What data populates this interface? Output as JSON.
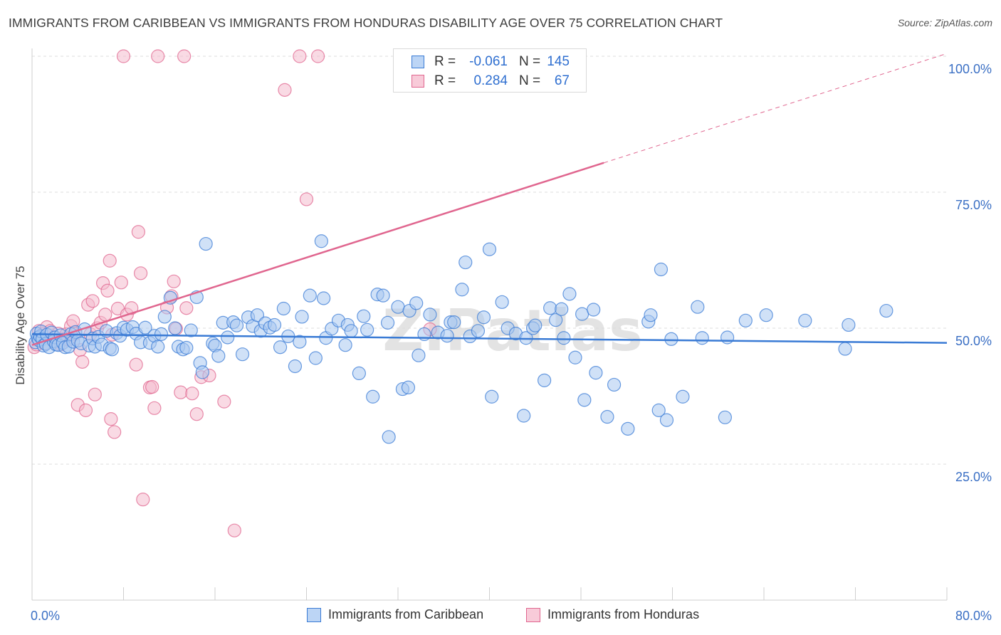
{
  "title": "IMMIGRANTS FROM CARIBBEAN VS IMMIGRANTS FROM HONDURAS DISABILITY AGE OVER 75 CORRELATION CHART",
  "source": "Source: ZipAtlas.com",
  "watermark": "ZIPatlas",
  "colors": {
    "blue": "#3a7bd5",
    "blue_fill": "#a9c9f1",
    "pink": "#e0668f",
    "pink_fill": "#f4bccd",
    "axis_text": "#3a6fc4",
    "grid": "#dcdcdc"
  },
  "legend_top": {
    "rows": [
      {
        "r_label": "R =",
        "r_value": "-0.061",
        "n_label": "N =",
        "n_value": "145",
        "color": "blue"
      },
      {
        "r_label": "R =",
        "r_value": "0.284",
        "n_label": "N =",
        "n_value": "67",
        "color": "pink"
      }
    ]
  },
  "legend_bottom": [
    {
      "label": "Immigrants from Caribbean",
      "color": "blue"
    },
    {
      "label": "Immigrants from Honduras",
      "color": "pink"
    }
  ],
  "chart_data": {
    "type": "scatter",
    "title": "IMMIGRANTS FROM CARIBBEAN VS IMMIGRANTS FROM HONDURAS DISABILITY AGE OVER 75 CORRELATION CHART",
    "xlabel": "",
    "ylabel": "Disability Age Over 75",
    "xlim": [
      0,
      80
    ],
    "ylim": [
      0,
      105
    ],
    "x_tick_labels": [
      "0.0%",
      "80.0%"
    ],
    "y_ticks": [
      25,
      50,
      75,
      100
    ],
    "y_tick_labels": [
      "25.0%",
      "50.0%",
      "75.0%",
      "100.0%"
    ],
    "grid": true,
    "legend_placement": "bottom",
    "series": [
      {
        "name": "Immigrants from Caribbean",
        "color": "blue",
        "trend": {
          "x": [
            0,
            80
          ],
          "y": [
            48.9,
            47.3
          ]
        },
        "points": [
          [
            0.3,
            47.4
          ],
          [
            0.4,
            49.0
          ],
          [
            0.5,
            48.2
          ],
          [
            0.6,
            47.8
          ],
          [
            0.7,
            48.5
          ],
          [
            0.8,
            49.4
          ],
          [
            0.9,
            48.0
          ],
          [
            1.0,
            46.8
          ],
          [
            1.2,
            47.1
          ],
          [
            1.3,
            48.8
          ],
          [
            1.5,
            46.5
          ],
          [
            1.7,
            49.2
          ],
          [
            1.9,
            47.6
          ],
          [
            2.0,
            48.3
          ],
          [
            2.1,
            47.0
          ],
          [
            2.3,
            46.9
          ],
          [
            2.5,
            48.7
          ],
          [
            2.7,
            47.3
          ],
          [
            2.9,
            46.5
          ],
          [
            3.2,
            46.6
          ],
          [
            3.4,
            48.9
          ],
          [
            3.6,
            47.5
          ],
          [
            3.8,
            49.3
          ],
          [
            4.0,
            47.7
          ],
          [
            4.3,
            47.2
          ],
          [
            4.6,
            49.8
          ],
          [
            5.0,
            46.8
          ],
          [
            5.3,
            48.1
          ],
          [
            5.5,
            46.6
          ],
          [
            5.8,
            48.4
          ],
          [
            6.1,
            47.0
          ],
          [
            6.5,
            49.5
          ],
          [
            6.8,
            46.3
          ],
          [
            7.0,
            46.1
          ],
          [
            7.4,
            49.1
          ],
          [
            7.7,
            48.6
          ],
          [
            8.0,
            50.1
          ],
          [
            8.3,
            49.7
          ],
          [
            8.8,
            50.2
          ],
          [
            9.1,
            49.0
          ],
          [
            9.5,
            47.4
          ],
          [
            9.9,
            50.1
          ],
          [
            10.3,
            47.3
          ],
          [
            10.7,
            48.6
          ],
          [
            11.0,
            46.6
          ],
          [
            11.3,
            48.9
          ],
          [
            11.6,
            52.1
          ],
          [
            12.1,
            55.6
          ],
          [
            12.5,
            50.0
          ],
          [
            12.8,
            46.6
          ],
          [
            13.2,
            46.1
          ],
          [
            13.5,
            46.4
          ],
          [
            13.9,
            49.6
          ],
          [
            14.4,
            55.7
          ],
          [
            14.7,
            43.6
          ],
          [
            14.9,
            41.9
          ],
          [
            15.2,
            65.5
          ],
          [
            15.8,
            47.2
          ],
          [
            16.0,
            46.8
          ],
          [
            16.3,
            44.9
          ],
          [
            16.7,
            51.0
          ],
          [
            17.1,
            48.3
          ],
          [
            17.6,
            51.1
          ],
          [
            17.9,
            50.5
          ],
          [
            18.4,
            45.2
          ],
          [
            18.9,
            52.0
          ],
          [
            19.3,
            50.4
          ],
          [
            19.7,
            52.4
          ],
          [
            20.0,
            49.5
          ],
          [
            20.4,
            50.9
          ],
          [
            20.8,
            50.1
          ],
          [
            21.2,
            50.6
          ],
          [
            21.7,
            46.5
          ],
          [
            22.0,
            53.6
          ],
          [
            22.4,
            48.5
          ],
          [
            23.0,
            43.0
          ],
          [
            23.4,
            47.5
          ],
          [
            23.6,
            52.1
          ],
          [
            24.3,
            56.0
          ],
          [
            24.8,
            44.5
          ],
          [
            25.3,
            66.0
          ],
          [
            25.5,
            55.5
          ],
          [
            25.7,
            48.2
          ],
          [
            26.2,
            49.9
          ],
          [
            26.8,
            51.4
          ],
          [
            27.4,
            46.9
          ],
          [
            27.6,
            50.6
          ],
          [
            27.9,
            49.5
          ],
          [
            28.6,
            41.7
          ],
          [
            29.0,
            52.2
          ],
          [
            29.3,
            49.7
          ],
          [
            29.8,
            37.4
          ],
          [
            30.2,
            56.2
          ],
          [
            30.7,
            56.0
          ],
          [
            31.1,
            51.0
          ],
          [
            31.2,
            30.0
          ],
          [
            32.0,
            53.9
          ],
          [
            32.4,
            38.8
          ],
          [
            32.9,
            39.1
          ],
          [
            33.0,
            53.2
          ],
          [
            33.6,
            54.6
          ],
          [
            33.8,
            45.0
          ],
          [
            34.3,
            48.9
          ],
          [
            34.8,
            52.5
          ],
          [
            35.5,
            49.2
          ],
          [
            36.3,
            48.6
          ],
          [
            36.6,
            51.1
          ],
          [
            36.9,
            51.1
          ],
          [
            37.6,
            57.1
          ],
          [
            37.9,
            62.1
          ],
          [
            38.3,
            48.5
          ],
          [
            39.0,
            49.5
          ],
          [
            39.5,
            52.0
          ],
          [
            40.0,
            64.5
          ],
          [
            40.2,
            37.4
          ],
          [
            41.1,
            54.8
          ],
          [
            41.6,
            50.0
          ],
          [
            42.3,
            49.0
          ],
          [
            43.0,
            33.9
          ],
          [
            43.2,
            48.2
          ],
          [
            43.8,
            50.0
          ],
          [
            44.0,
            50.5
          ],
          [
            44.8,
            40.4
          ],
          [
            45.3,
            53.7
          ],
          [
            45.8,
            51.5
          ],
          [
            46.3,
            53.5
          ],
          [
            46.5,
            48.2
          ],
          [
            47.0,
            56.3
          ],
          [
            47.5,
            44.6
          ],
          [
            48.1,
            52.6
          ],
          [
            48.3,
            36.8
          ],
          [
            49.1,
            53.4
          ],
          [
            49.3,
            41.8
          ],
          [
            50.3,
            33.7
          ],
          [
            50.9,
            39.6
          ],
          [
            52.1,
            31.5
          ],
          [
            53.9,
            51.2
          ],
          [
            54.1,
            52.4
          ],
          [
            54.8,
            34.9
          ],
          [
            55.0,
            60.8
          ],
          [
            55.5,
            33.1
          ],
          [
            55.9,
            48.0
          ],
          [
            56.9,
            37.4
          ],
          [
            58.2,
            53.9
          ],
          [
            58.6,
            48.2
          ],
          [
            60.6,
            33.6
          ],
          [
            60.8,
            48.3
          ],
          [
            62.4,
            51.4
          ],
          [
            64.2,
            52.4
          ],
          [
            67.6,
            51.4
          ],
          [
            71.1,
            46.2
          ],
          [
            71.4,
            50.6
          ],
          [
            74.7,
            53.2
          ]
        ]
      },
      {
        "name": "Immigrants from Honduras",
        "color": "pink",
        "trend": {
          "x": [
            0,
            50
          ],
          "y": [
            46.9,
            80.4
          ]
        },
        "trend_dashed": {
          "x": [
            50,
            80
          ],
          "y": [
            80.4,
            100.5
          ]
        },
        "points": [
          [
            0.2,
            46.5
          ],
          [
            0.4,
            47.0
          ],
          [
            0.6,
            49.5
          ],
          [
            0.8,
            48.2
          ],
          [
            1.0,
            49.0
          ],
          [
            1.3,
            50.2
          ],
          [
            1.6,
            49.5
          ],
          [
            1.9,
            48.3
          ],
          [
            2.1,
            47.5
          ],
          [
            2.3,
            49.0
          ],
          [
            2.5,
            47.0
          ],
          [
            2.7,
            48.0
          ],
          [
            3.0,
            48.9
          ],
          [
            3.2,
            47.9
          ],
          [
            3.4,
            50.4
          ],
          [
            3.6,
            51.3
          ],
          [
            3.8,
            49.0
          ],
          [
            4.0,
            35.9
          ],
          [
            4.2,
            46.0
          ],
          [
            4.4,
            43.8
          ],
          [
            4.7,
            34.9
          ],
          [
            4.9,
            54.3
          ],
          [
            5.1,
            48.9
          ],
          [
            5.3,
            55.0
          ],
          [
            5.5,
            37.8
          ],
          [
            5.7,
            50.0
          ],
          [
            6.0,
            51.0
          ],
          [
            6.2,
            58.3
          ],
          [
            6.4,
            52.5
          ],
          [
            6.6,
            56.9
          ],
          [
            6.8,
            62.4
          ],
          [
            6.9,
            33.3
          ],
          [
            7.2,
            30.9
          ],
          [
            7.5,
            53.6
          ],
          [
            7.8,
            58.4
          ],
          [
            8.0,
            100.0
          ],
          [
            8.3,
            52.5
          ],
          [
            8.7,
            53.7
          ],
          [
            9.1,
            43.3
          ],
          [
            9.3,
            67.7
          ],
          [
            9.5,
            60.1
          ],
          [
            9.7,
            18.5
          ],
          [
            10.3,
            39.1
          ],
          [
            10.5,
            39.2
          ],
          [
            10.7,
            35.3
          ],
          [
            11.0,
            100.0
          ],
          [
            11.8,
            53.8
          ],
          [
            12.2,
            55.9
          ],
          [
            12.4,
            58.6
          ],
          [
            12.6,
            49.9
          ],
          [
            13.0,
            38.2
          ],
          [
            13.3,
            100.0
          ],
          [
            13.5,
            53.7
          ],
          [
            14.0,
            38.0
          ],
          [
            14.4,
            34.2
          ],
          [
            14.8,
            41.0
          ],
          [
            15.5,
            41.3
          ],
          [
            16.8,
            36.5
          ],
          [
            17.7,
            12.8
          ],
          [
            22.1,
            93.8
          ],
          [
            23.4,
            100.0
          ],
          [
            24.0,
            73.7
          ],
          [
            25.0,
            100.0
          ],
          [
            34.8,
            49.8
          ],
          [
            1.1,
            47.2
          ],
          [
            2.8,
            47.9
          ],
          [
            7.0,
            48.8
          ]
        ]
      }
    ]
  }
}
